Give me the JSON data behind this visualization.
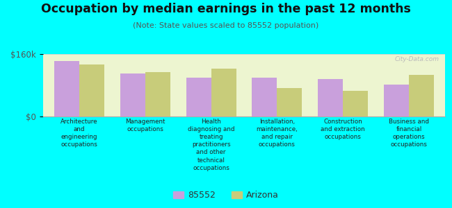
{
  "title": "Occupation by median earnings in the past 12 months",
  "subtitle": "(Note: State values scaled to 85552 population)",
  "categories": [
    "Architecture\nand\nengineering\noccupations",
    "Management\noccupations",
    "Health\ndiagnosing and\ntreating\npractitioners\nand other\ntechnical\noccupations",
    "Installation,\nmaintenance,\nand repair\noccupations",
    "Construction\nand extraction\noccupations",
    "Business and\nfinancial\noperations\noccupations"
  ],
  "values_85552": [
    142000,
    110000,
    100000,
    99000,
    96000,
    82000
  ],
  "values_arizona": [
    133000,
    114000,
    122000,
    73000,
    65000,
    106000
  ],
  "color_85552": "#c9a0dc",
  "color_arizona": "#c8cc7a",
  "ylim_max": 160000,
  "ytick_labels": [
    "$0",
    "$160k"
  ],
  "background_color": "#edf5d0",
  "outer_background": "#00ffff",
  "legend_label_85552": "85552",
  "legend_label_arizona": "Arizona",
  "watermark": "City-Data.com"
}
